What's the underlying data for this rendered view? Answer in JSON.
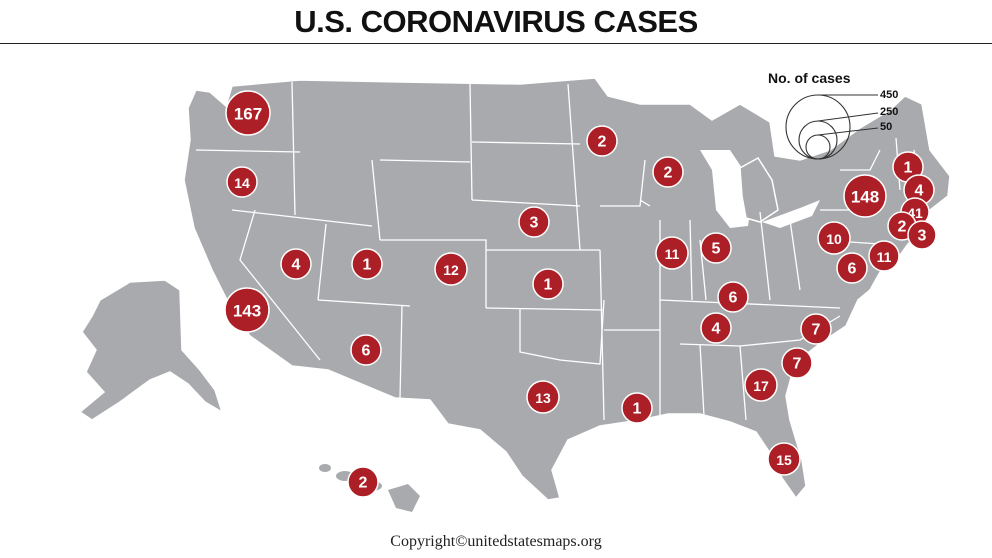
{
  "title": "U.S. CORONAVIRUS CASES",
  "legend": {
    "title": "No. of cases",
    "entries": [
      "450",
      "250",
      "50"
    ]
  },
  "colors": {
    "land": "#a9aaad",
    "border": "#ffffff",
    "bubble": "#ad1f26",
    "bubble_stroke": "#ffffff"
  },
  "cases": [
    {
      "state": "Washington",
      "value": "167"
    },
    {
      "state": "Oregon",
      "value": "14"
    },
    {
      "state": "California",
      "value": "143"
    },
    {
      "state": "Nevada",
      "value": "4"
    },
    {
      "state": "Utah",
      "value": "1"
    },
    {
      "state": "Arizona",
      "value": "6"
    },
    {
      "state": "Colorado",
      "value": "12"
    },
    {
      "state": "Nebraska",
      "value": "3"
    },
    {
      "state": "Kansas",
      "value": "1"
    },
    {
      "state": "Texas",
      "value": "13"
    },
    {
      "state": "Minnesota",
      "value": "2"
    },
    {
      "state": "Wisconsin",
      "value": "2"
    },
    {
      "state": "Illinois",
      "value": "11"
    },
    {
      "state": "Indiana",
      "value": "5"
    },
    {
      "state": "Kentucky",
      "value": "6"
    },
    {
      "state": "Tennessee",
      "value": "4"
    },
    {
      "state": "Louisiana",
      "value": "1"
    },
    {
      "state": "Georgia",
      "value": "17"
    },
    {
      "state": "Florida",
      "value": "15"
    },
    {
      "state": "South Carolina",
      "value": "7"
    },
    {
      "state": "North Carolina",
      "value": "7"
    },
    {
      "state": "Pennsylvania",
      "value": "10"
    },
    {
      "state": "Maryland",
      "value": "6"
    },
    {
      "state": "New Jersey",
      "value": "11"
    },
    {
      "state": "New York",
      "value": "148"
    },
    {
      "state": "Vermont",
      "value": "1"
    },
    {
      "state": "New Hampshire",
      "value": "4"
    },
    {
      "state": "Massachusetts",
      "value": "41"
    },
    {
      "state": "Connecticut",
      "value": "2"
    },
    {
      "state": "Rhode Island",
      "value": "3"
    },
    {
      "state": "Hawaii",
      "value": "2"
    }
  ],
  "copyright": "Copyright©unitedstatesmaps.org"
}
